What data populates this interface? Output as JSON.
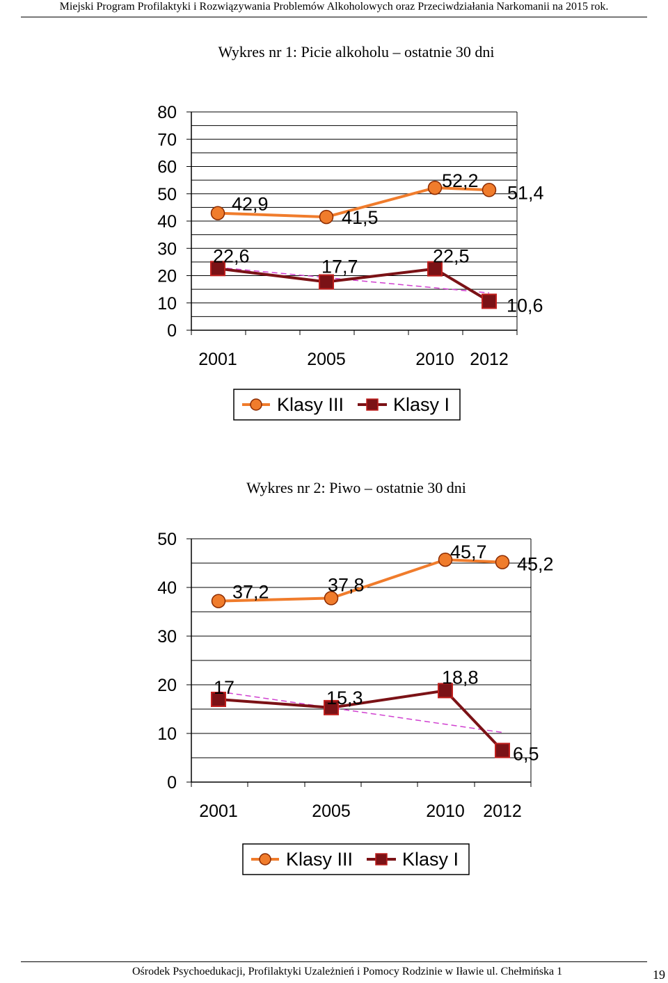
{
  "header": {
    "text": "Miejski Program Profilaktyki i Rozwiązywania Problemów Alkoholowych oraz Przeciwdziałania Narkomanii na 2015 rok."
  },
  "chart_data": [
    {
      "type": "line",
      "title": "Wykres nr 1: Picie alkoholu – ostatnie 30 dni",
      "categories": [
        "2001",
        "2005",
        "2010",
        "2012"
      ],
      "ylim": [
        0,
        80
      ],
      "yticks": [
        0,
        10,
        20,
        30,
        40,
        50,
        60,
        70,
        80
      ],
      "grid": true,
      "legend_position": "bottom",
      "series": [
        {
          "name": "Klasy III",
          "values": [
            42.9,
            41.5,
            52.2,
            51.4
          ],
          "labels": [
            "42,9",
            "41,5",
            "52,2",
            "51,4"
          ],
          "color": "#f07c2c",
          "marker": "circle"
        },
        {
          "name": "Klasy I",
          "values": [
            22.6,
            17.7,
            22.5,
            10.6
          ],
          "labels": [
            "22,6",
            "17,7",
            "22,5",
            "10,6"
          ],
          "color": "#7b1216",
          "marker": "square"
        }
      ],
      "trendline": {
        "series": "Klasy I",
        "color": "#d040d0",
        "style": "dashed"
      }
    },
    {
      "type": "line",
      "title": "Wykres nr 2: Piwo – ostatnie 30 dni",
      "categories": [
        "2001",
        "2005",
        "2010",
        "2012"
      ],
      "ylim": [
        0,
        50
      ],
      "yticks": [
        0,
        10,
        20,
        30,
        40,
        50
      ],
      "grid": true,
      "legend_position": "bottom",
      "series": [
        {
          "name": "Klasy III",
          "values": [
            37.2,
            37.8,
            45.7,
            45.2
          ],
          "labels": [
            "37,2",
            "37,8",
            "45,7",
            "45,2"
          ],
          "color": "#f07c2c",
          "marker": "circle"
        },
        {
          "name": "Klasy I",
          "values": [
            17,
            15.3,
            18.8,
            6.5
          ],
          "labels": [
            "17",
            "15,3",
            "18,8",
            "6,5"
          ],
          "color": "#7b1216",
          "marker": "square"
        }
      ],
      "trendline": {
        "series": "Klasy I",
        "color": "#d040d0",
        "style": "dashed"
      }
    }
  ],
  "footer": {
    "text": "Ośrodek Psychoedukacji, Profilaktyki Uzależnień i Pomocy Rodzinie w Iławie ul. Chełmińska 1",
    "page_number": "19"
  }
}
